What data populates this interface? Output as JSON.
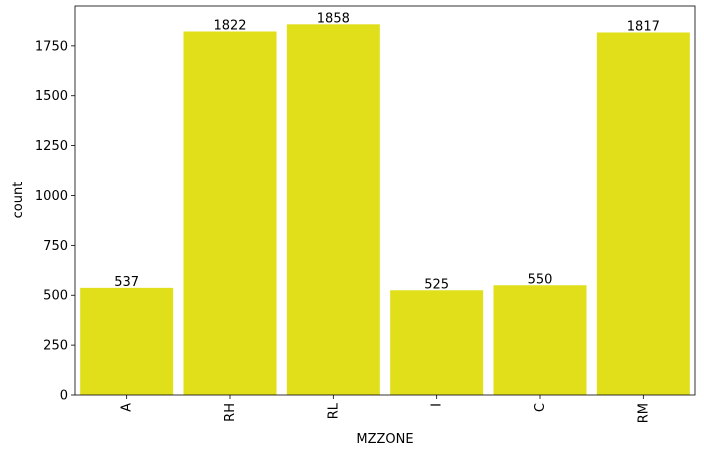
{
  "chart_data": {
    "type": "bar",
    "categories": [
      "A",
      "RH",
      "RL",
      "I",
      "C",
      "RM"
    ],
    "values": [
      537,
      1822,
      1858,
      525,
      550,
      1817
    ],
    "data_labels": [
      "537",
      "1822",
      "1858",
      "525",
      "550",
      "1817"
    ],
    "xlabel": "MZZONE",
    "ylabel": "count",
    "ylim": [
      0,
      1949.75
    ],
    "yticks": [
      0,
      250,
      500,
      750,
      1000,
      1250,
      1500,
      1750
    ],
    "ytick_labels": [
      "0",
      "250",
      "500",
      "750",
      "1000",
      "1250",
      "1500",
      "1750"
    ],
    "bar_color": "#e0df1a",
    "grid": false,
    "x_tick_rotation": "vertical"
  }
}
